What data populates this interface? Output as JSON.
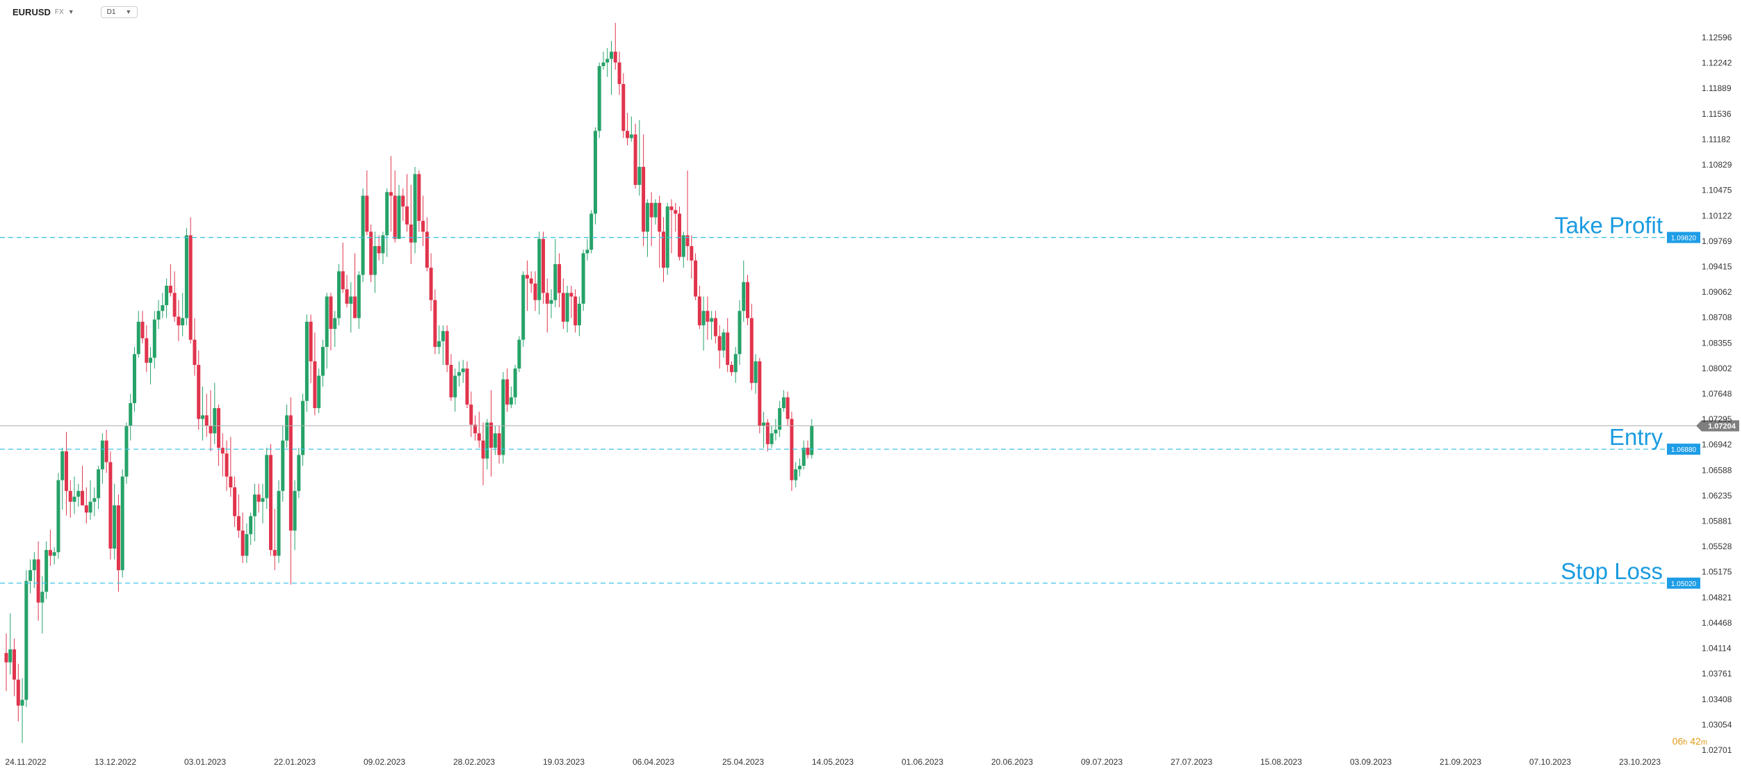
{
  "toolbar": {
    "symbol": "EURUSD",
    "market": "FX",
    "timeframe": "D1"
  },
  "timer": {
    "hours": "06",
    "hours_unit": "h",
    "minutes": "42",
    "minutes_unit": "m"
  },
  "colors": {
    "bull": "#26a269",
    "bear": "#e0344c",
    "level_line": "#40c4e6",
    "level_text": "#1a9be0",
    "price_line": "#b0b0b0",
    "price_badge": "#7f7f7f"
  },
  "chart_data": {
    "type": "candlestick",
    "symbol": "EURUSD",
    "timeframe": "D1",
    "y_axis": {
      "ticks": [
        "1.12596",
        "1.12242",
        "1.11889",
        "1.11536",
        "1.11182",
        "1.10829",
        "1.10475",
        "1.10122",
        "1.09769",
        "1.09415",
        "1.09062",
        "1.08708",
        "1.08355",
        "1.08002",
        "1.07648",
        "1.07295",
        "1.06942",
        "1.06588",
        "1.06235",
        "1.05881",
        "1.05528",
        "1.05175",
        "1.04821",
        "1.04468",
        "1.04114",
        "1.03761",
        "1.03408",
        "1.03054",
        "1.02701"
      ],
      "range": [
        1.02701,
        1.12596
      ]
    },
    "x_axis": {
      "ticks": [
        "24.11.2022",
        "13.12.2022",
        "03.01.2023",
        "22.01.2023",
        "09.02.2023",
        "28.02.2023",
        "19.03.2023",
        "06.04.2023",
        "25.04.2023",
        "14.05.2023",
        "01.06.2023",
        "20.06.2023",
        "09.07.2023",
        "27.07.2023",
        "15.08.2023",
        "03.09.2023",
        "21.09.2023",
        "07.10.2023",
        "23.10.2023"
      ]
    },
    "levels": [
      {
        "label": "Take Profit",
        "price": "1.09820",
        "value": 1.0982
      },
      {
        "label": "Entry",
        "price": "1.06880",
        "value": 1.0688
      },
      {
        "label": "Stop Loss",
        "price": "1.05020",
        "value": 1.0502
      }
    ],
    "current_price": {
      "price": "1.07204",
      "value": 1.07204
    },
    "ohlc": [
      [
        1.0405,
        1.0432,
        1.0352,
        1.0392
      ],
      [
        1.0392,
        1.046,
        1.0375,
        1.041
      ],
      [
        1.041,
        1.0425,
        1.0345,
        1.0368
      ],
      [
        1.0368,
        1.039,
        1.031,
        1.0332
      ],
      [
        1.0332,
        1.037,
        1.028,
        1.034
      ],
      [
        1.034,
        1.052,
        1.033,
        1.0505
      ],
      [
        1.0505,
        1.0535,
        1.0488,
        1.052
      ],
      [
        1.052,
        1.0545,
        1.0495,
        1.0535
      ],
      [
        1.0535,
        1.056,
        1.045,
        1.0475
      ],
      [
        1.0475,
        1.0512,
        1.0432,
        1.049
      ],
      [
        1.049,
        1.056,
        1.048,
        1.0548
      ],
      [
        1.0548,
        1.0576,
        1.0526,
        1.054
      ],
      [
        1.054,
        1.0552,
        1.0528,
        1.0545
      ],
      [
        1.0545,
        1.0655,
        1.0536,
        1.0645
      ],
      [
        1.0645,
        1.069,
        1.0604,
        1.0685
      ],
      [
        1.0685,
        1.0712,
        1.0596,
        1.063
      ],
      [
        1.063,
        1.0645,
        1.0593,
        1.0615
      ],
      [
        1.0615,
        1.065,
        1.0598,
        1.0622
      ],
      [
        1.0622,
        1.064,
        1.0608,
        1.063
      ],
      [
        1.063,
        1.0665,
        1.061,
        1.061
      ],
      [
        1.061,
        1.0635,
        1.0585,
        1.06
      ],
      [
        1.06,
        1.0645,
        1.059,
        1.0615
      ],
      [
        1.0615,
        1.0635,
        1.0595,
        1.062
      ],
      [
        1.062,
        1.0665,
        1.0605,
        1.066
      ],
      [
        1.066,
        1.071,
        1.064,
        1.07
      ],
      [
        1.07,
        1.0715,
        1.0655,
        1.067
      ],
      [
        1.067,
        1.0685,
        1.0535,
        1.055
      ],
      [
        1.055,
        1.064,
        1.0535,
        1.061
      ],
      [
        1.061,
        1.0625,
        1.049,
        1.052
      ],
      [
        1.052,
        1.066,
        1.051,
        1.065
      ],
      [
        1.065,
        1.0725,
        1.064,
        1.072
      ],
      [
        1.072,
        1.0765,
        1.07,
        1.0752
      ],
      [
        1.0752,
        1.083,
        1.074,
        1.082
      ],
      [
        1.082,
        1.088,
        1.0815,
        1.0865
      ],
      [
        1.0865,
        1.088,
        1.0835,
        1.0842
      ],
      [
        1.0842,
        1.086,
        1.0795,
        1.0808
      ],
      [
        1.0808,
        1.083,
        1.0778,
        1.0815
      ],
      [
        1.0815,
        1.088,
        1.08,
        1.0868
      ],
      [
        1.0868,
        1.0895,
        1.0855,
        1.088
      ],
      [
        1.088,
        1.0905,
        1.087,
        1.0888
      ],
      [
        1.0888,
        1.0925,
        1.087,
        1.0915
      ],
      [
        1.0915,
        1.0945,
        1.09,
        1.0905
      ],
      [
        1.0905,
        1.0935,
        1.0865,
        1.0872
      ],
      [
        1.0872,
        1.0895,
        1.0838,
        1.086
      ],
      [
        1.086,
        1.0905,
        1.0845,
        1.087
      ],
      [
        1.087,
        1.0995,
        1.086,
        1.0985
      ],
      [
        1.0985,
        1.101,
        1.0835,
        1.084
      ],
      [
        1.084,
        1.087,
        1.079,
        1.0805
      ],
      [
        1.0805,
        1.0825,
        1.0715,
        1.073
      ],
      [
        1.073,
        1.0775,
        1.07,
        1.0735
      ],
      [
        1.0735,
        1.0765,
        1.0705,
        1.072
      ],
      [
        1.072,
        1.077,
        1.0685,
        1.071
      ],
      [
        1.071,
        1.078,
        1.0695,
        1.0745
      ],
      [
        1.0745,
        1.075,
        1.0665,
        1.069
      ],
      [
        1.069,
        1.071,
        1.065,
        1.0682
      ],
      [
        1.0682,
        1.07,
        1.063,
        1.065
      ],
      [
        1.065,
        1.0705,
        1.0622,
        1.0635
      ],
      [
        1.0635,
        1.065,
        1.058,
        1.0595
      ],
      [
        1.0595,
        1.0625,
        1.0565,
        1.0575
      ],
      [
        1.0575,
        1.06,
        1.053,
        1.054
      ],
      [
        1.054,
        1.0585,
        1.053,
        1.057
      ],
      [
        1.057,
        1.06,
        1.0555,
        1.0595
      ],
      [
        1.0595,
        1.064,
        1.056,
        1.0625
      ],
      [
        1.0625,
        1.064,
        1.06,
        1.0615
      ],
      [
        1.0615,
        1.064,
        1.0585,
        1.062
      ],
      [
        1.062,
        1.069,
        1.0605,
        1.068
      ],
      [
        1.068,
        1.0695,
        1.054,
        1.0548
      ],
      [
        1.0548,
        1.0605,
        1.052,
        1.054
      ],
      [
        1.054,
        1.0645,
        1.053,
        1.063
      ],
      [
        1.063,
        1.072,
        1.0615,
        1.07
      ],
      [
        1.07,
        1.075,
        1.069,
        1.0735
      ],
      [
        1.0735,
        1.076,
        1.05,
        1.0575
      ],
      [
        1.0575,
        1.0645,
        1.0548,
        1.063
      ],
      [
        1.063,
        1.069,
        1.062,
        1.068
      ],
      [
        1.068,
        1.0765,
        1.0665,
        1.0755
      ],
      [
        1.0755,
        1.0875,
        1.074,
        1.0865
      ],
      [
        1.0865,
        1.0875,
        1.078,
        1.081
      ],
      [
        1.081,
        1.085,
        1.0735,
        1.0745
      ],
      [
        1.0745,
        1.08,
        1.0738,
        1.079
      ],
      [
        1.079,
        1.084,
        1.0775,
        1.083
      ],
      [
        1.083,
        1.0905,
        1.08,
        1.09
      ],
      [
        1.09,
        1.0905,
        1.0825,
        1.0855
      ],
      [
        1.0855,
        1.088,
        1.083,
        1.087
      ],
      [
        1.087,
        1.0945,
        1.086,
        1.0935
      ],
      [
        1.0935,
        1.0975,
        1.0905,
        1.091
      ],
      [
        1.091,
        1.093,
        1.0885,
        1.089
      ],
      [
        1.089,
        1.092,
        1.085,
        1.09
      ],
      [
        1.09,
        1.096,
        1.087,
        1.087
      ],
      [
        1.087,
        1.0935,
        1.0855,
        1.093
      ],
      [
        1.093,
        1.105,
        1.092,
        1.104
      ],
      [
        1.104,
        1.1075,
        1.0985,
        1.099
      ],
      [
        1.099,
        1.1,
        1.092,
        1.093
      ],
      [
        1.093,
        1.099,
        1.0905,
        1.097
      ],
      [
        1.097,
        1.0985,
        1.095,
        1.096
      ],
      [
        1.096,
        1.099,
        1.0945,
        1.0985
      ],
      [
        1.0985,
        1.105,
        1.0955,
        1.1045
      ],
      [
        1.1045,
        1.1095,
        1.099,
        1.104
      ],
      [
        1.104,
        1.1075,
        1.0975,
        1.098
      ],
      [
        1.098,
        1.1055,
        1.098,
        1.104
      ],
      [
        1.104,
        1.105,
        1.1005,
        1.1025
      ],
      [
        1.1025,
        1.107,
        1.099,
        1.1
      ],
      [
        1.1,
        1.1055,
        1.0945,
        1.0975
      ],
      [
        1.0975,
        1.108,
        1.096,
        1.107
      ],
      [
        1.107,
        1.1075,
        1.099,
        1.1005
      ],
      [
        1.1005,
        1.104,
        1.097,
        1.099
      ],
      [
        1.099,
        1.101,
        1.0935,
        1.094
      ],
      [
        1.094,
        1.096,
        1.088,
        1.0895
      ],
      [
        1.0895,
        1.091,
        1.082,
        1.083
      ],
      [
        1.083,
        1.086,
        1.082,
        1.0838
      ],
      [
        1.0838,
        1.086,
        1.0805,
        1.0852
      ],
      [
        1.0852,
        1.086,
        1.0795,
        1.0805
      ],
      [
        1.0805,
        1.082,
        1.0755,
        1.076
      ],
      [
        1.076,
        1.08,
        1.074,
        1.079
      ],
      [
        1.079,
        1.081,
        1.0775,
        1.0795
      ],
      [
        1.0795,
        1.0812,
        1.078,
        1.08
      ],
      [
        1.08,
        1.081,
        1.0745,
        1.075
      ],
      [
        1.075,
        1.0768,
        1.0705,
        1.0722
      ],
      [
        1.0722,
        1.0735,
        1.07,
        1.071
      ],
      [
        1.071,
        1.074,
        1.069,
        1.07
      ],
      [
        1.07,
        1.0725,
        1.0638,
        1.0675
      ],
      [
        1.0675,
        1.073,
        1.066,
        1.0725
      ],
      [
        1.0725,
        1.077,
        1.065,
        1.069
      ],
      [
        1.069,
        1.072,
        1.068,
        1.071
      ],
      [
        1.071,
        1.072,
        1.0668,
        1.068
      ],
      [
        1.068,
        1.0795,
        1.0668,
        1.0785
      ],
      [
        1.0785,
        1.08,
        1.074,
        1.075
      ],
      [
        1.075,
        1.0775,
        1.0745,
        1.076
      ],
      [
        1.076,
        1.0805,
        1.075,
        1.08
      ],
      [
        1.08,
        1.0845,
        1.0795,
        1.084
      ],
      [
        1.084,
        1.0935,
        1.083,
        1.093
      ],
      [
        1.093,
        1.095,
        1.088,
        1.0925
      ],
      [
        1.0925,
        1.0935,
        1.0905,
        1.0918
      ],
      [
        1.0918,
        1.0935,
        1.088,
        1.0895
      ],
      [
        1.0895,
        1.099,
        1.0875,
        1.098
      ],
      [
        1.098,
        1.099,
        1.089,
        1.0905
      ],
      [
        1.0905,
        1.0925,
        1.085,
        1.089
      ],
      [
        1.089,
        1.091,
        1.087,
        1.0895
      ],
      [
        1.0895,
        1.098,
        1.0885,
        1.0945
      ],
      [
        1.0945,
        1.096,
        1.0885,
        1.0905
      ],
      [
        1.0905,
        1.0925,
        1.0855,
        1.0865
      ],
      [
        1.0865,
        1.0915,
        1.085,
        1.0905
      ],
      [
        1.0905,
        1.0915,
        1.087,
        1.09
      ],
      [
        1.09,
        1.091,
        1.085,
        1.086
      ],
      [
        1.086,
        1.09,
        1.0845,
        1.089
      ],
      [
        1.089,
        1.0965,
        1.088,
        1.096
      ],
      [
        1.096,
        1.098,
        1.095,
        1.0965
      ],
      [
        1.0965,
        1.102,
        1.096,
        1.1015
      ],
      [
        1.1015,
        1.1135,
        1.1,
        1.113
      ],
      [
        1.113,
        1.1225,
        1.112,
        1.122
      ],
      [
        1.122,
        1.124,
        1.1215,
        1.1225
      ],
      [
        1.1225,
        1.1245,
        1.1205,
        1.123
      ],
      [
        1.123,
        1.1255,
        1.118,
        1.124
      ],
      [
        1.124,
        1.128,
        1.1215,
        1.1225
      ],
      [
        1.1225,
        1.124,
        1.118,
        1.1195
      ],
      [
        1.1195,
        1.121,
        1.112,
        1.113
      ],
      [
        1.113,
        1.1155,
        1.111,
        1.112
      ],
      [
        1.112,
        1.115,
        1.1115,
        1.1125
      ],
      [
        1.1125,
        1.114,
        1.105,
        1.1055
      ],
      [
        1.1055,
        1.1145,
        1.104,
        1.108
      ],
      [
        1.108,
        1.1125,
        1.097,
        1.099
      ],
      [
        1.099,
        1.1035,
        1.0955,
        1.103
      ],
      [
        1.103,
        1.1045,
        1.097,
        1.101
      ],
      [
        1.101,
        1.1035,
        1.1,
        1.103
      ],
      [
        1.103,
        1.104,
        1.094,
        1.099
      ],
      [
        1.099,
        1.101,
        1.092,
        1.094
      ],
      [
        1.094,
        1.103,
        1.093,
        1.1025
      ],
      [
        1.1025,
        1.1035,
        1.096,
        1.102
      ],
      [
        1.102,
        1.103,
        1.099,
        1.1015
      ],
      [
        1.1015,
        1.1025,
        1.095,
        1.0955
      ],
      [
        1.0955,
        1.099,
        1.094,
        1.0985
      ],
      [
        1.0985,
        1.1075,
        1.095,
        1.097
      ],
      [
        1.097,
        1.0985,
        1.0925,
        1.095
      ],
      [
        1.095,
        1.096,
        1.0895,
        1.09
      ],
      [
        1.09,
        1.0915,
        1.0855,
        1.086
      ],
      [
        1.086,
        1.09,
        1.0825,
        1.088
      ],
      [
        1.088,
        1.09,
        1.084,
        1.0865
      ],
      [
        1.0865,
        1.088,
        1.084,
        1.087
      ],
      [
        1.087,
        1.088,
        1.0835,
        1.0845
      ],
      [
        1.0845,
        1.086,
        1.08,
        1.0825
      ],
      [
        1.0825,
        1.0855,
        1.0815,
        1.085
      ],
      [
        1.085,
        1.087,
        1.0795,
        1.0805
      ],
      [
        1.0805,
        1.081,
        1.079,
        1.0795
      ],
      [
        1.0795,
        1.083,
        1.078,
        1.082
      ],
      [
        1.082,
        1.0895,
        1.0805,
        1.088
      ],
      [
        1.088,
        1.095,
        1.0865,
        1.092
      ],
      [
        1.092,
        1.093,
        1.086,
        1.087
      ],
      [
        1.087,
        1.089,
        1.077,
        1.078
      ],
      [
        1.078,
        1.082,
        1.0765,
        1.081
      ],
      [
        1.081,
        1.0815,
        1.071,
        1.072
      ],
      [
        1.072,
        1.074,
        1.069,
        1.0725
      ],
      [
        1.0725,
        1.073,
        1.0685,
        1.0695
      ],
      [
        1.0695,
        1.072,
        1.069,
        1.071
      ],
      [
        1.071,
        1.073,
        1.07,
        1.0715
      ],
      [
        1.0715,
        1.0755,
        1.0705,
        1.0745
      ],
      [
        1.0745,
        1.077,
        1.074,
        1.076
      ],
      [
        1.076,
        1.0768,
        1.072,
        1.073
      ],
      [
        1.073,
        1.074,
        1.063,
        1.0645
      ],
      [
        1.0645,
        1.067,
        1.0635,
        1.066
      ],
      [
        1.066,
        1.0675,
        1.065,
        1.0665
      ],
      [
        1.0665,
        1.07,
        1.066,
        1.069
      ],
      [
        1.069,
        1.07,
        1.0675,
        1.068
      ],
      [
        1.068,
        1.073,
        1.0675,
        1.072
      ]
    ]
  }
}
